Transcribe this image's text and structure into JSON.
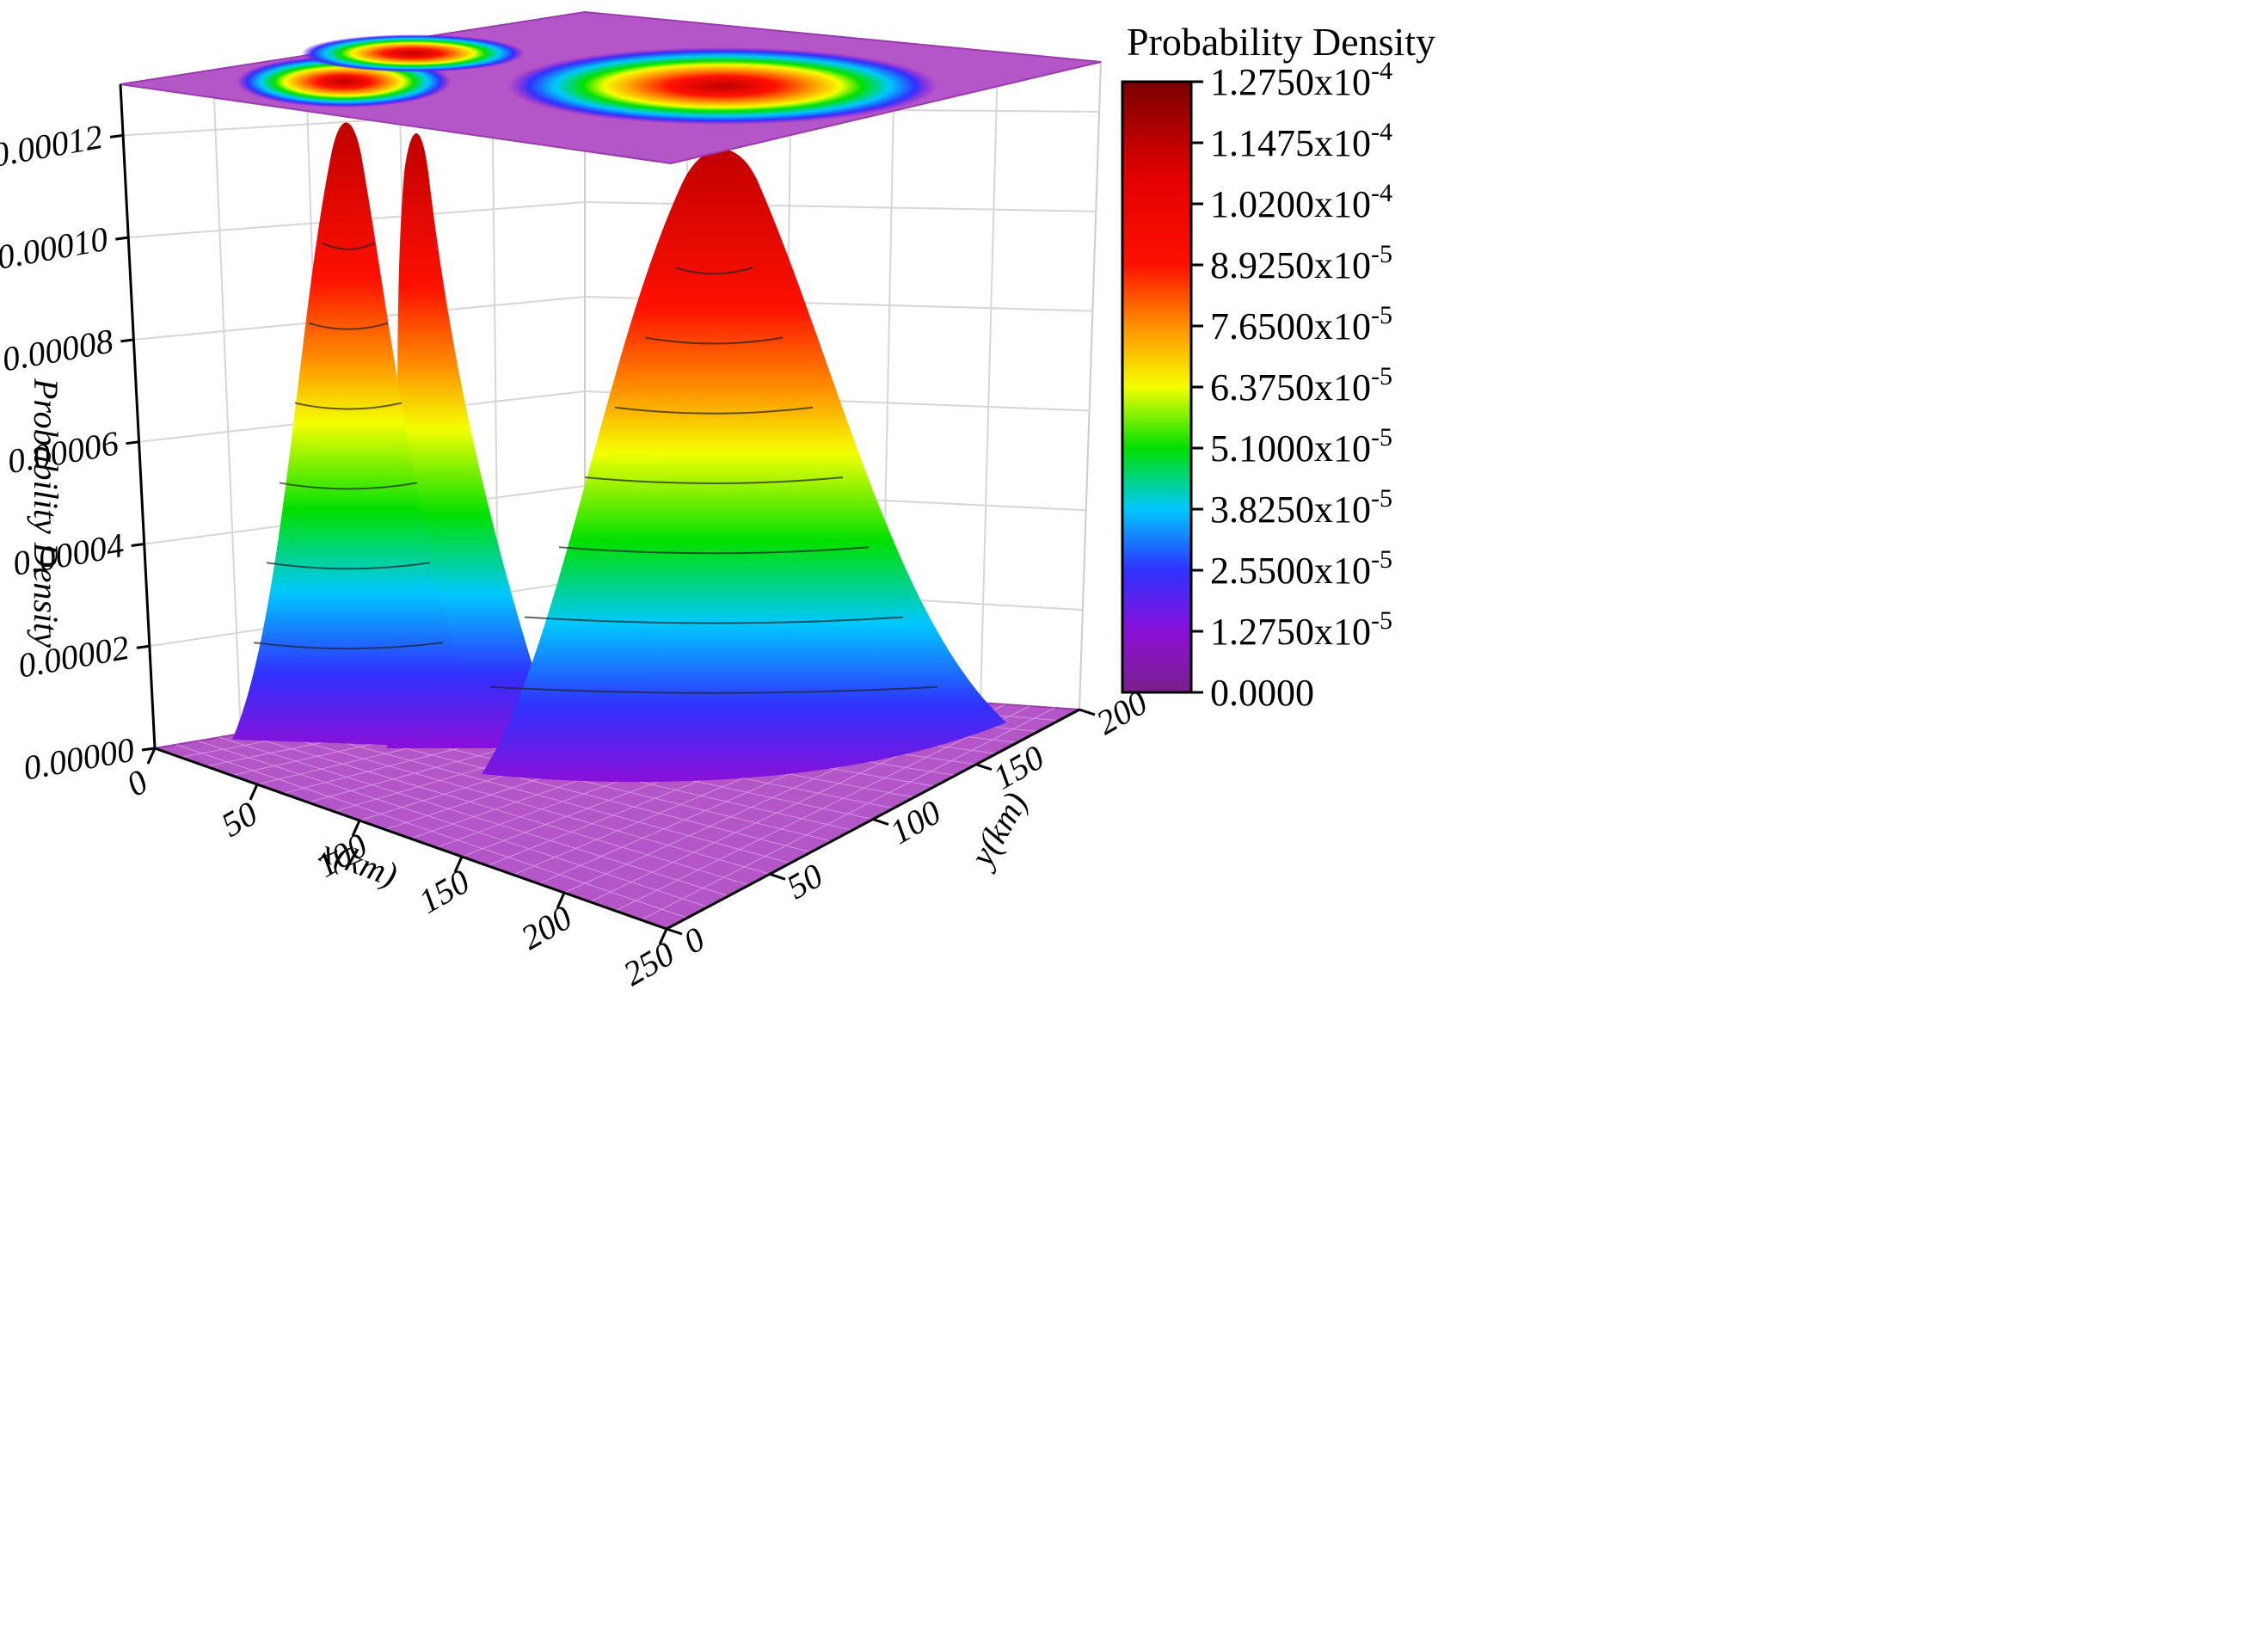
{
  "chart_data": {
    "type": "surface3d",
    "title": "",
    "xlabel": "x(km)",
    "ylabel": "y(km)",
    "zlabel": "Probability Density",
    "xlim": [
      0,
      250
    ],
    "ylim": [
      0,
      200
    ],
    "zlim": [
      0,
      0.00013
    ],
    "x_ticks": [
      "0",
      "50",
      "100",
      "150",
      "200",
      "250"
    ],
    "y_ticks": [
      "0",
      "50",
      "100",
      "150",
      "200"
    ],
    "z_ticks": [
      "0.00000",
      "0.00002",
      "0.00004",
      "0.00006",
      "0.00008",
      "0.00010",
      "0.00012"
    ],
    "z_tick_values": [
      0,
      2e-05,
      4e-05,
      6e-05,
      8e-05,
      0.0001,
      0.00012
    ],
    "grid": true,
    "projected_contour_on_top": true,
    "peaks": [
      {
        "x": 50,
        "y": 180,
        "z_max": 0.0001275
      },
      {
        "x": 20,
        "y": 140,
        "z_max": 0.000125
      },
      {
        "x": 185,
        "y": 140,
        "z_max": 0.000123
      }
    ],
    "colorbar": {
      "title": "Probability Density",
      "labels": [
        {
          "mantissa": "1.2750",
          "exp": "-4",
          "value": 0.0001275
        },
        {
          "mantissa": "1.1475",
          "exp": "-4",
          "value": 0.00011475
        },
        {
          "mantissa": "1.0200",
          "exp": "-4",
          "value": 0.000102
        },
        {
          "mantissa": "8.9250",
          "exp": "-5",
          "value": 8.925e-05
        },
        {
          "mantissa": "7.6500",
          "exp": "-5",
          "value": 7.65e-05
        },
        {
          "mantissa": "6.3750",
          "exp": "-5",
          "value": 6.375e-05
        },
        {
          "mantissa": "5.1000",
          "exp": "-5",
          "value": 5.1e-05
        },
        {
          "mantissa": "3.8250",
          "exp": "-5",
          "value": 3.825e-05
        },
        {
          "mantissa": "2.5500",
          "exp": "-5",
          "value": 2.55e-05
        },
        {
          "mantissa": "1.2750",
          "exp": "-5",
          "value": 1.275e-05
        },
        {
          "mantissa": "0.0000",
          "exp": "",
          "value": 0
        }
      ],
      "x10": "x10",
      "colors": [
        "#7a1f8a",
        "#8a10d8",
        "#3030ff",
        "#00c8ff",
        "#00e000",
        "#f4ff00",
        "#ff9000",
        "#ff1000",
        "#e00000",
        "#7a0000"
      ]
    }
  }
}
